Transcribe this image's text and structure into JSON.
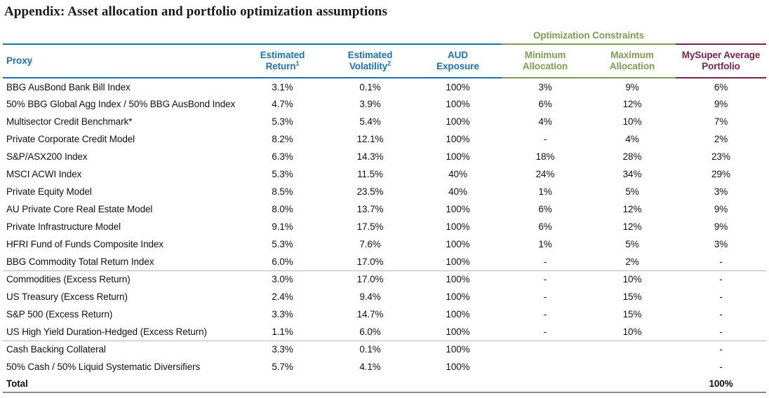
{
  "title": "Appendix: Asset allocation and portfolio optimization assumptions",
  "colors": {
    "accent_blue": "#1C70B8",
    "accent_green": "#7D9C52",
    "accent_maroon": "#7C1F4E",
    "separator_gray": "#b5b5b5",
    "total_border_gray": "#8c8c8c",
    "text_color": "#111111"
  },
  "table": {
    "constraints_group_label": "Optimization Constraints",
    "headers": [
      {
        "line1": "Proxy"
      },
      {
        "line1": "Estimated",
        "line2": "Return",
        "sup": "1"
      },
      {
        "line1": "Estimated",
        "line2": "Volatility",
        "sup": "2"
      },
      {
        "line1": "AUD",
        "line2": "Exposure"
      },
      {
        "line1": "Minimum",
        "line2": "Allocation"
      },
      {
        "line1": "Maximum",
        "line2": "Allocation"
      },
      {
        "line1": "MySuper Average",
        "line2": "Portfolio"
      }
    ],
    "groups": [
      {
        "rows": [
          [
            "BBG AusBond Bank Bill Index",
            "3.1%",
            "0.1%",
            "100%",
            "3%",
            "9%",
            "6%"
          ],
          [
            "50% BBG Global Agg Index / 50% BBG AusBond Index",
            "4.7%",
            "3.9%",
            "100%",
            "6%",
            "12%",
            "9%"
          ],
          [
            "Multisector Credit Benchmark*",
            "5.3%",
            "5.4%",
            "100%",
            "4%",
            "10%",
            "7%"
          ],
          [
            "Private Corporate Credit Model",
            "8.2%",
            "12.1%",
            "100%",
            "-",
            "4%",
            "2%"
          ],
          [
            "S&P/ASX200 Index",
            "6.3%",
            "14.3%",
            "100%",
            "18%",
            "28%",
            "23%"
          ],
          [
            "MSCI ACWI Index",
            "5.3%",
            "11.5%",
            "40%",
            "24%",
            "34%",
            "29%"
          ],
          [
            "Private Equity Model",
            "8.5%",
            "23.5%",
            "40%",
            "1%",
            "5%",
            "3%"
          ],
          [
            "AU Private Core Real Estate Model",
            "8.0%",
            "13.7%",
            "100%",
            "6%",
            "12%",
            "9%"
          ],
          [
            "Private Infrastructure Model",
            "9.1%",
            "17.5%",
            "100%",
            "6%",
            "12%",
            "9%"
          ],
          [
            "HFRI Fund of Funds Composite Index",
            "5.3%",
            "7.6%",
            "100%",
            "1%",
            "5%",
            "3%"
          ],
          [
            "BBG Commodity Total Return Index",
            "6.0%",
            "17.0%",
            "100%",
            "-",
            "2%",
            "-"
          ]
        ]
      },
      {
        "rows": [
          [
            "Commodities (Excess Return)",
            "3.0%",
            "17.0%",
            "100%",
            "-",
            "10%",
            "-"
          ],
          [
            "US Treasury (Excess Return)",
            "2.4%",
            "9.4%",
            "100%",
            "-",
            "15%",
            "-"
          ],
          [
            "S&P 500 (Excess Return)",
            "3.3%",
            "14.7%",
            "100%",
            "-",
            "15%",
            "-"
          ],
          [
            "US High Yield Duration-Hedged (Excess Return)",
            "1.1%",
            "6.0%",
            "100%",
            "-",
            "10%",
            "-"
          ]
        ]
      },
      {
        "rows": [
          [
            "Cash Backing Collateral",
            "3.3%",
            "0.1%",
            "100%",
            "",
            "",
            "-"
          ],
          [
            "50% Cash / 50% Liquid Systematic Diversifiers",
            "5.7%",
            "4.1%",
            "100%",
            "",
            "",
            "-"
          ]
        ]
      }
    ],
    "total": {
      "label": "Total",
      "mysuper_value": "100%"
    }
  }
}
